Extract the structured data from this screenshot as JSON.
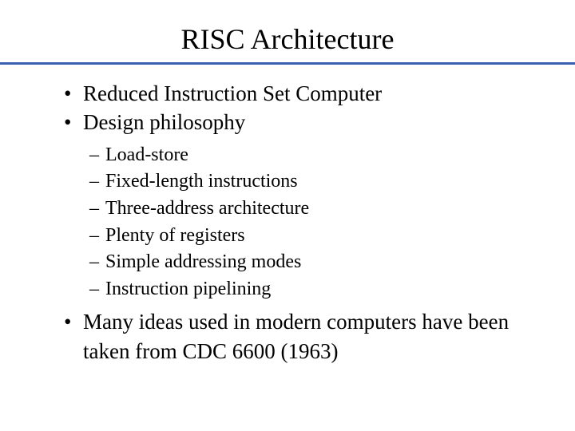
{
  "slide": {
    "title": "RISC Architecture",
    "bullets": [
      {
        "text": "Reduced Instruction Set Computer"
      },
      {
        "text": "Design philosophy"
      },
      {
        "text": "Many ideas used in modern computers have been taken from CDC 6600 (1963)"
      }
    ],
    "sub_bullets": [
      {
        "text": "Load-store"
      },
      {
        "text": "Fixed-length instructions"
      },
      {
        "text": "Three-address architecture"
      },
      {
        "text": "Plenty of registers"
      },
      {
        "text": "Simple addressing modes"
      },
      {
        "text": "Instruction pipelining"
      }
    ],
    "colors": {
      "divider": "#3b5fb0",
      "background": "#ffffff",
      "text": "#000000"
    },
    "typography": {
      "title_fontsize": 36,
      "bullet_fontsize": 27,
      "sub_bullet_fontsize": 24,
      "font_family": "Times New Roman"
    }
  }
}
